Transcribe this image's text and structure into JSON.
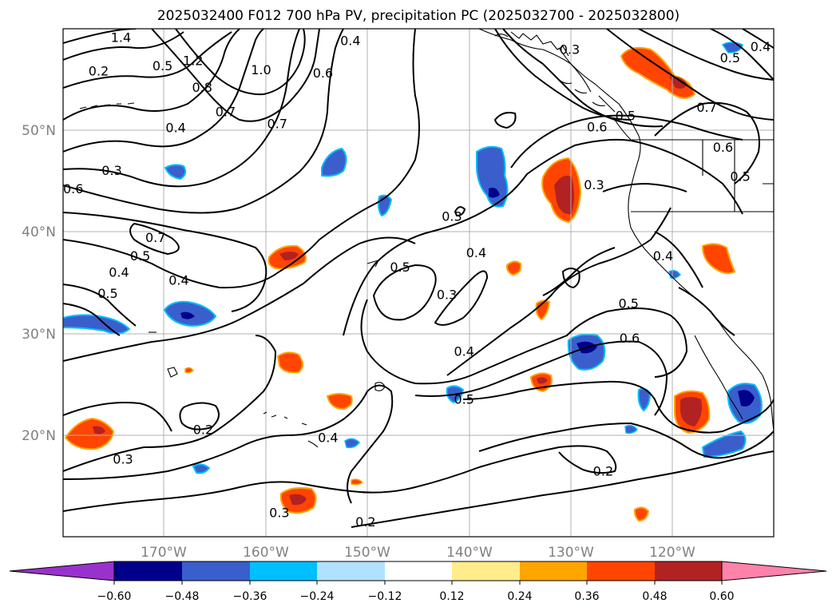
{
  "title": "2025032400 F012 700 hPa PV, precipitation PC (2025032700 - 2025032800)",
  "map": {
    "extent": {
      "lon_min": -180,
      "lon_max": -110,
      "lat_min": 10,
      "lat_max": 60
    },
    "lon_ticks": [
      {
        "lon": -170,
        "label": "170°W"
      },
      {
        "lon": -160,
        "label": "160°W"
      },
      {
        "lon": -150,
        "label": "150°W"
      },
      {
        "lon": -140,
        "label": "140°W"
      },
      {
        "lon": -130,
        "label": "130°W"
      },
      {
        "lon": -120,
        "label": "120°W"
      }
    ],
    "lat_ticks": [
      {
        "lat": 20,
        "label": "20°N"
      },
      {
        "lat": 30,
        "label": "30°N"
      },
      {
        "lat": 40,
        "label": "40°N"
      },
      {
        "lat": 50,
        "label": "50°N"
      }
    ],
    "gridlines": true
  },
  "colorbar": {
    "colors": [
      "#9932cc",
      "#00008b",
      "#3a5fcd",
      "#00bfff",
      "#b0e2ff",
      "#ffffff",
      "#ffec8b",
      "#ffa500",
      "#ff4500",
      "#b22222",
      "#ff82ab"
    ],
    "extend": "both",
    "tick_labels": [
      "−0.60",
      "−0.48",
      "−0.36",
      "−0.24",
      "−0.12",
      "0.12",
      "0.24",
      "0.36",
      "0.48",
      "0.60"
    ]
  },
  "contour_labels": [
    {
      "text": "1.4",
      "lon": -174.3,
      "lat": 59.1
    },
    {
      "text": "0.4",
      "lon": -151.7,
      "lat": 58.8
    },
    {
      "text": "0.3",
      "lon": -130.1,
      "lat": 57.9
    },
    {
      "text": "0.4",
      "lon": -111.3,
      "lat": 58.2
    },
    {
      "text": "0.5",
      "lon": -114.3,
      "lat": 57.1
    },
    {
      "text": "0.2",
      "lon": -176.5,
      "lat": 55.8
    },
    {
      "text": "0.5",
      "lon": -170.2,
      "lat": 56.3
    },
    {
      "text": "1.2",
      "lon": -167.2,
      "lat": 56.8
    },
    {
      "text": "1.0",
      "lon": -160.5,
      "lat": 55.9
    },
    {
      "text": "0.6",
      "lon": -154.4,
      "lat": 55.6
    },
    {
      "text": "0.8",
      "lon": -166.3,
      "lat": 54.2
    },
    {
      "text": "0.7",
      "lon": -164.0,
      "lat": 51.8
    },
    {
      "text": "0.7",
      "lon": -158.9,
      "lat": 50.6
    },
    {
      "text": "0.4",
      "lon": -168.9,
      "lat": 50.2
    },
    {
      "text": "0.6",
      "lon": -127.4,
      "lat": 50.3
    },
    {
      "text": "0.5",
      "lon": -124.6,
      "lat": 51.4
    },
    {
      "text": "0.7",
      "lon": -116.6,
      "lat": 52.2
    },
    {
      "text": "0.6",
      "lon": -115.0,
      "lat": 48.3
    },
    {
      "text": "0.5",
      "lon": -113.3,
      "lat": 45.4
    },
    {
      "text": "0.3",
      "lon": -175.2,
      "lat": 46.0
    },
    {
      "text": "0.6",
      "lon": -179.0,
      "lat": 44.2
    },
    {
      "text": "0.3",
      "lon": -127.7,
      "lat": 44.6
    },
    {
      "text": "0.3",
      "lon": -141.7,
      "lat": 41.5
    },
    {
      "text": "0.7",
      "lon": -170.9,
      "lat": 39.4
    },
    {
      "text": "0.5",
      "lon": -172.4,
      "lat": 37.6
    },
    {
      "text": "0.4",
      "lon": -168.6,
      "lat": 35.2
    },
    {
      "text": "0.4",
      "lon": -139.3,
      "lat": 37.9
    },
    {
      "text": "0.4",
      "lon": -120.9,
      "lat": 37.6
    },
    {
      "text": "0.5",
      "lon": -146.8,
      "lat": 36.5
    },
    {
      "text": "0.4",
      "lon": -174.5,
      "lat": 36.0
    },
    {
      "text": "0.5",
      "lon": -175.6,
      "lat": 33.9
    },
    {
      "text": "0.3",
      "lon": -142.2,
      "lat": 33.8
    },
    {
      "text": "0.5",
      "lon": -124.3,
      "lat": 32.9
    },
    {
      "text": "0.6",
      "lon": -124.2,
      "lat": 29.5
    },
    {
      "text": "0.4",
      "lon": -140.5,
      "lat": 28.2
    },
    {
      "text": "0.5",
      "lon": -140.5,
      "lat": 23.5
    },
    {
      "text": "0.2",
      "lon": -166.2,
      "lat": 20.5
    },
    {
      "text": "0.4",
      "lon": -153.9,
      "lat": 19.7
    },
    {
      "text": "0.3",
      "lon": -174.1,
      "lat": 17.6
    },
    {
      "text": "0.2",
      "lon": -126.8,
      "lat": 16.4
    },
    {
      "text": "0.3",
      "lon": -158.7,
      "lat": 12.3
    },
    {
      "text": "0.2",
      "lon": -150.2,
      "lat": 11.4
    }
  ]
}
